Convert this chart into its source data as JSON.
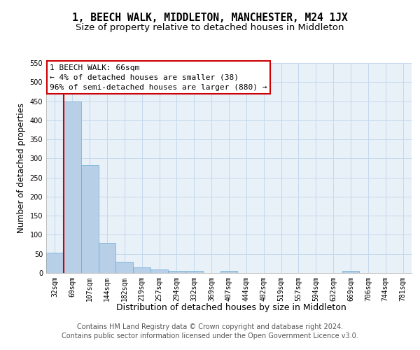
{
  "title": "1, BEECH WALK, MIDDLETON, MANCHESTER, M24 1JX",
  "subtitle": "Size of property relative to detached houses in Middleton",
  "xlabel": "Distribution of detached houses by size in Middleton",
  "ylabel": "Number of detached properties",
  "bar_labels": [
    "32sqm",
    "69sqm",
    "107sqm",
    "144sqm",
    "182sqm",
    "219sqm",
    "257sqm",
    "294sqm",
    "332sqm",
    "369sqm",
    "407sqm",
    "444sqm",
    "482sqm",
    "519sqm",
    "557sqm",
    "594sqm",
    "632sqm",
    "669sqm",
    "706sqm",
    "744sqm",
    "781sqm"
  ],
  "bar_values": [
    53,
    450,
    283,
    78,
    30,
    15,
    10,
    5,
    5,
    0,
    6,
    0,
    0,
    0,
    0,
    0,
    0,
    5,
    0,
    0,
    0
  ],
  "bar_color": "#b8cfe8",
  "bar_edge_color": "#6aaad4",
  "annotation_text": "1 BEECH WALK: 66sqm\n← 4% of detached houses are smaller (38)\n96% of semi-detached houses are larger (880) →",
  "annotation_box_color": "#ffffff",
  "annotation_box_edge_color": "#cc0000",
  "property_line_color": "#cc0000",
  "grid_color": "#c5d8ec",
  "background_color": "#e8f0f8",
  "ylim_max": 550,
  "yticks": [
    0,
    50,
    100,
    150,
    200,
    250,
    300,
    350,
    400,
    450,
    500,
    550
  ],
  "footer_line1": "Contains HM Land Registry data © Crown copyright and database right 2024.",
  "footer_line2": "Contains public sector information licensed under the Open Government Licence v3.0.",
  "title_fontsize": 10.5,
  "subtitle_fontsize": 9.5,
  "ylabel_fontsize": 8.5,
  "xlabel_fontsize": 9,
  "tick_fontsize": 7,
  "annotation_fontsize": 8,
  "footer_fontsize": 7
}
